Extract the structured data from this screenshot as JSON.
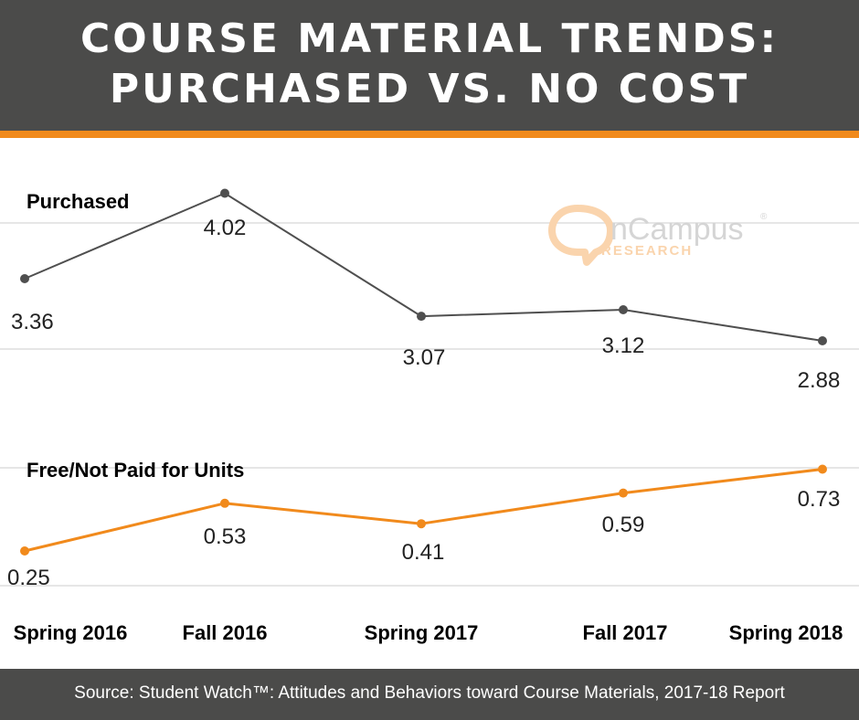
{
  "header": {
    "title_line1": "COURSE MATERIAL TRENDS:",
    "title_line2": "PURCHASED VS. NO COST"
  },
  "logo": {
    "main_text": "nCampus",
    "sub_text": "RESEARCH",
    "mark": "®"
  },
  "footer": {
    "source": "Source: Student Watch™: Attitudes and Behaviors toward Course Materials, 2017-18 Report"
  },
  "colors": {
    "header_bg": "#4b4b4a",
    "accent": "#f18a1c",
    "purchased_line": "#4f4f4f",
    "free_line": "#f18a1c",
    "gridline": "#e6e6e6"
  },
  "chart_data": {
    "type": "line",
    "categories": [
      "Spring 2016",
      "Fall 2016",
      "Spring 2017",
      "Fall 2017",
      "Spring 2018"
    ],
    "series": [
      {
        "name": "Purchased",
        "values": [
          3.36,
          4.02,
          3.07,
          3.12,
          2.88
        ]
      },
      {
        "name": "Free/Not Paid for Units",
        "values": [
          0.25,
          0.53,
          0.41,
          0.59,
          0.73
        ]
      }
    ],
    "grid": true,
    "legend": "none"
  }
}
